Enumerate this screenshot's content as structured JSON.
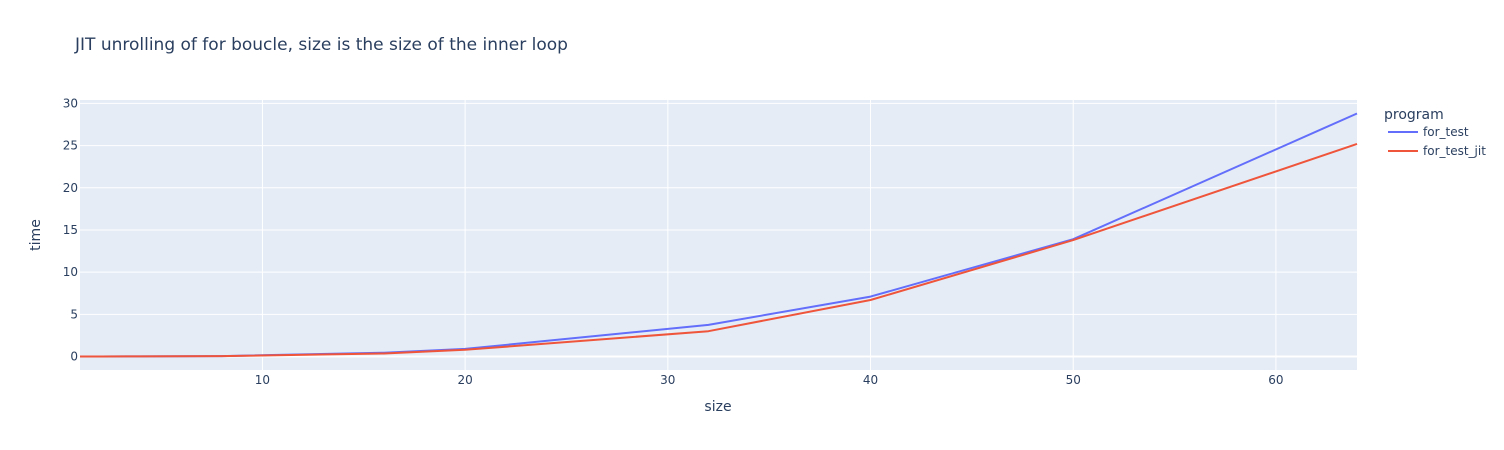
{
  "chart_data": {
    "type": "line",
    "title": "JIT unrolling of for boucle, size is the size of the inner loop",
    "xlabel": "size",
    "ylabel": "time",
    "xlim": [
      1,
      64
    ],
    "ylim": [
      -1.6,
      30.4
    ],
    "xticks": [
      10,
      20,
      30,
      40,
      50,
      60
    ],
    "yticks": [
      0,
      5,
      10,
      15,
      20,
      25,
      30
    ],
    "grid": true,
    "legend": {
      "title": "program",
      "position": "top-right"
    },
    "series": [
      {
        "name": "for_test",
        "color": "#636efa",
        "x": [
          1,
          2,
          4,
          8,
          16,
          20,
          32,
          40,
          50,
          64
        ],
        "y": [
          0.0,
          0.0,
          0.01,
          0.05,
          0.45,
          0.9,
          3.75,
          7.1,
          13.9,
          28.8
        ]
      },
      {
        "name": "for_test_jit",
        "color": "#ef553b",
        "x": [
          1,
          2,
          4,
          8,
          16,
          20,
          32,
          40,
          50,
          64
        ],
        "y": [
          0.0,
          0.0,
          0.01,
          0.05,
          0.35,
          0.8,
          3.0,
          6.7,
          13.8,
          25.2
        ]
      }
    ]
  }
}
